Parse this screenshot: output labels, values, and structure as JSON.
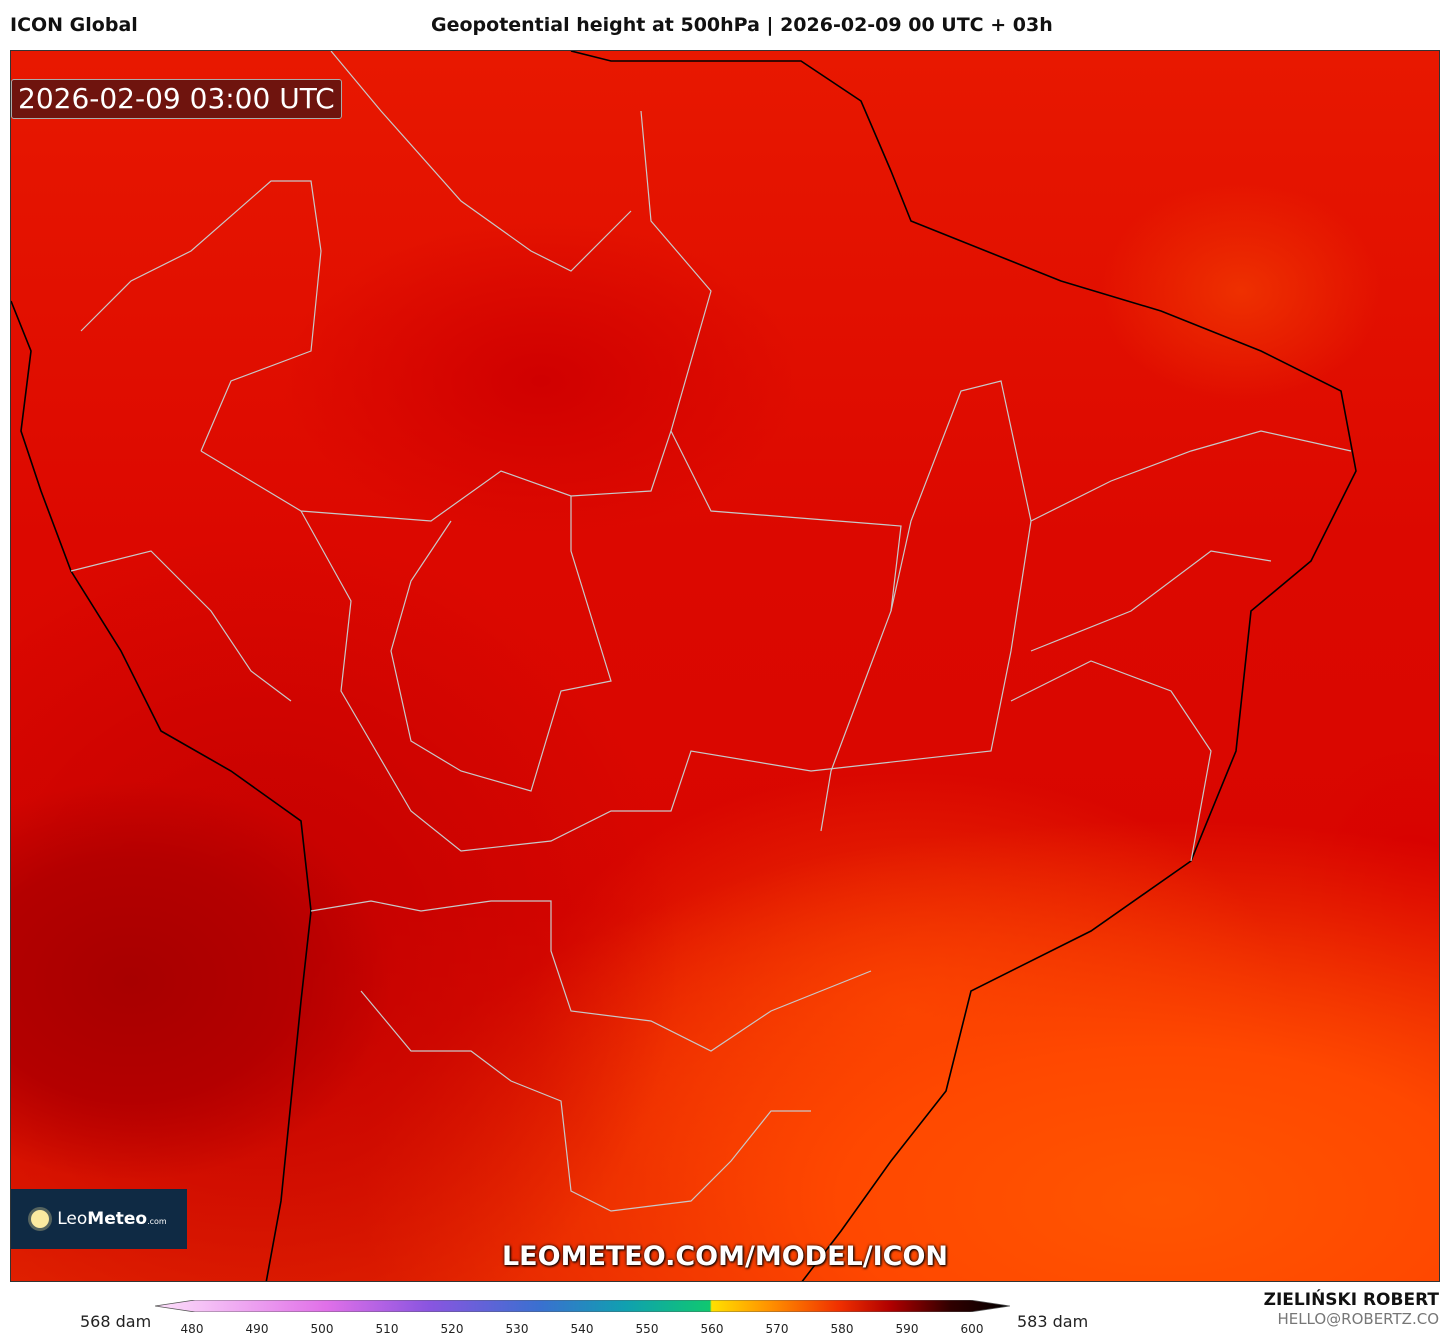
{
  "header": {
    "model": "ICON Global",
    "title": "Geopotential height at 500hPa | 2026-02-09 00 UTC + 03h"
  },
  "map": {
    "valid_time": "2026-02-09 03:00 UTC",
    "watermark": "LEOMETEO.COM/MODEL/ICON",
    "logo_text": "LeoMeteo.com"
  },
  "colorbar": {
    "min_label": "568 dam",
    "max_label": "583 dam",
    "ticks": [
      "480",
      "490",
      "500",
      "510",
      "520",
      "530",
      "540",
      "550",
      "560",
      "570",
      "580",
      "590",
      "600"
    ],
    "colors": [
      "#fbd0f8",
      "#e070e8",
      "#8a50e0",
      "#3a70d0",
      "#10a0b0",
      "#10c070",
      "#ffd000",
      "#ff8000",
      "#f03000",
      "#b00000",
      "#400000",
      "#000000"
    ]
  },
  "author": {
    "name": "ZIELIŃSKI ROBERT",
    "email": "HELLO@ROBERTZ.CO"
  }
}
